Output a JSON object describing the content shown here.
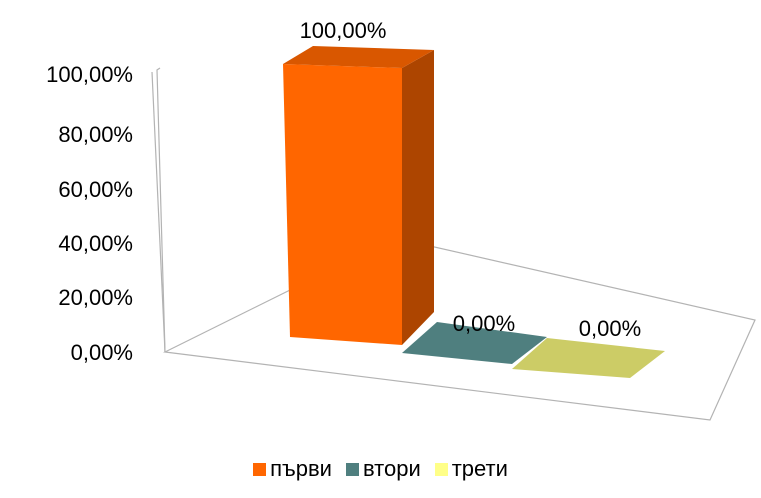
{
  "chart_data": {
    "type": "bar",
    "categories": [
      "първи",
      "втори",
      "трети"
    ],
    "values": [
      100,
      0,
      0
    ],
    "value_labels": [
      "100,00%",
      "0,00%",
      "0,00%"
    ],
    "y_ticks": [
      "0,00%",
      "20,00%",
      "40,00%",
      "60,00%",
      "80,00%",
      "100,00%"
    ],
    "ylim": [
      0,
      100
    ],
    "colors": [
      "#ff6600",
      "#4f7f7f",
      "#cccc66"
    ],
    "legend_colors": [
      "#ff6600",
      "#4f7f7f",
      "#ffff88"
    ],
    "legend_position": "bottom",
    "grid": false,
    "three_d": true
  }
}
